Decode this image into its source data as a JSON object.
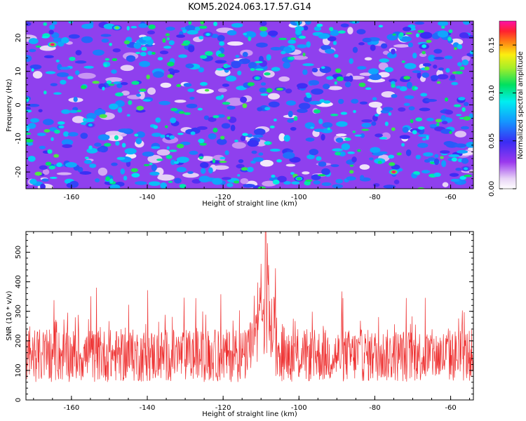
{
  "title": "KOM5.2024.063.17.57.G14",
  "chart_data": [
    {
      "type": "heatmap",
      "xlabel": "Height of straight line (km)",
      "ylabel": "Frequency (Hz)",
      "xlim": [
        -172,
        -54
      ],
      "ylim": [
        -25,
        25
      ],
      "x_ticks": [
        -160,
        -140,
        -120,
        -100,
        -80,
        -60
      ],
      "y_ticks": [
        -20,
        -10,
        0,
        10,
        20
      ],
      "grid": false,
      "colorbar": {
        "label": "Normalized spectral amplitude",
        "range": [
          0.0,
          0.175
        ],
        "ticks": [
          0.0,
          0.05,
          0.1,
          0.15
        ],
        "tick_labels": [
          "0.00",
          "0.05",
          "0.10",
          "0.15"
        ],
        "colormap": "white-purple-blue-cyan-green-yellow-red-magenta"
      },
      "hotspots": [
        {
          "x": -165,
          "y": 18,
          "value": 0.17
        },
        {
          "x": -148,
          "y": 23,
          "value": 0.12
        },
        {
          "x": -124,
          "y": 21,
          "value": 0.09
        },
        {
          "x": -111,
          "y": 8,
          "value": 0.1
        },
        {
          "x": -100,
          "y": -22,
          "value": 0.11
        },
        {
          "x": -75,
          "y": -20,
          "value": 0.17
        },
        {
          "x": -155,
          "y": -6,
          "value": 0.08
        },
        {
          "x": -56,
          "y": -19,
          "value": 0.08
        }
      ]
    },
    {
      "type": "line",
      "xlabel": "Height of straight line (km)",
      "ylabel": "SNR (10 * v/v)",
      "xlim": [
        -172,
        -54
      ],
      "ylim": [
        0,
        570
      ],
      "x_ticks": [
        -160,
        -140,
        -120,
        -100,
        -80,
        -60
      ],
      "y_ticks": [
        0,
        100,
        200,
        300,
        400,
        500
      ],
      "grid": false,
      "series": [
        {
          "color": "#ee3030",
          "baseline_mean": 150,
          "x_step": 0.1,
          "peak": {
            "x": -108.8,
            "value": 570
          }
        }
      ]
    }
  ]
}
